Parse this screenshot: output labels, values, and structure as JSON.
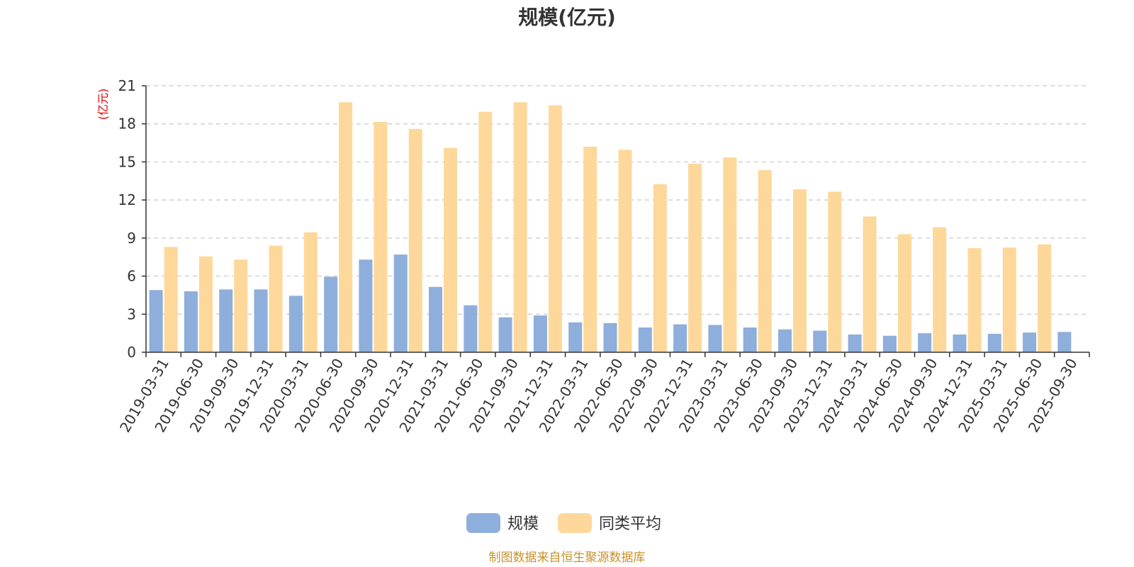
{
  "chart_data": {
    "type": "bar",
    "title": "规模(亿元)",
    "ylabel": "(亿元)",
    "ylim": [
      0,
      21
    ],
    "yticks": [
      0,
      3,
      6,
      9,
      12,
      15,
      18,
      21
    ],
    "grid": true,
    "legend_position": "bottom",
    "categories": [
      "2019-03-31",
      "2019-06-30",
      "2019-09-30",
      "2019-12-31",
      "2020-03-31",
      "2020-06-30",
      "2020-09-30",
      "2020-12-31",
      "2021-03-31",
      "2021-06-30",
      "2021-09-30",
      "2021-12-31",
      "2022-03-31",
      "2022-06-30",
      "2022-09-30",
      "2022-12-31",
      "2023-03-31",
      "2023-06-30",
      "2023-09-30",
      "2023-12-31",
      "2024-03-31",
      "2024-06-30",
      "2024-09-30",
      "2024-12-31",
      "2025-03-31",
      "2025-06-30",
      "2025-09-30"
    ],
    "series": [
      {
        "name": "规模",
        "color": "#8eaedb",
        "values": [
          4.9,
          4.8,
          4.95,
          4.95,
          4.45,
          5.95,
          7.3,
          7.7,
          5.15,
          3.7,
          2.75,
          2.9,
          2.35,
          2.3,
          1.95,
          2.2,
          2.15,
          1.95,
          1.8,
          1.7,
          1.4,
          1.3,
          1.5,
          1.4,
          1.45,
          1.55,
          1.6
        ]
      },
      {
        "name": "同类平均",
        "color": "#fdd89a",
        "values": [
          8.3,
          7.55,
          7.3,
          8.4,
          9.45,
          19.7,
          18.15,
          17.6,
          16.1,
          18.95,
          19.7,
          19.45,
          16.2,
          15.95,
          13.25,
          14.85,
          15.35,
          14.35,
          12.85,
          12.65,
          10.7,
          9.3,
          9.85,
          8.2,
          8.25,
          8.5,
          null
        ]
      }
    ]
  },
  "footer": {
    "source": "制图数据来自恒生聚源数据库"
  }
}
